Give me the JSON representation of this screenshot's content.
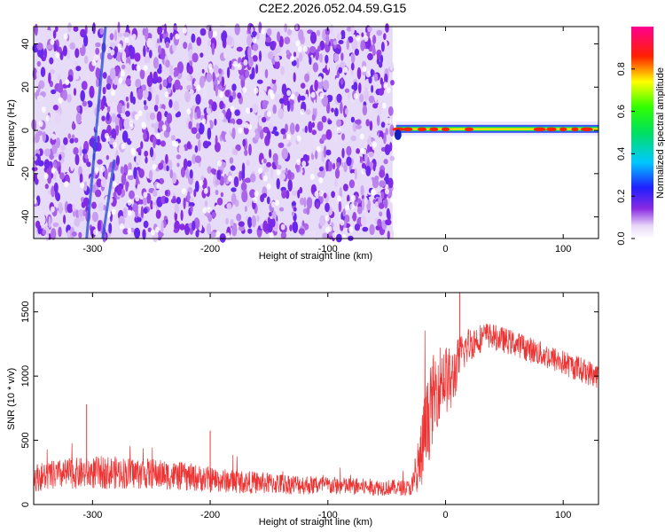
{
  "title": "C2E2.2026.052.04.59.G15",
  "chart_data": [
    {
      "type": "heatmap",
      "title": "C2E2.2026.052.04.59.G15",
      "xlabel": "Height of straight line (km)",
      "ylabel": "Frequency (Hz)",
      "xlim": [
        -350,
        130
      ],
      "ylim": [
        -50,
        48
      ],
      "xticks": [
        "-300",
        "-200",
        "-100",
        "0",
        "100"
      ],
      "xtick_values": [
        -300,
        -200,
        -100,
        0,
        100
      ],
      "yticks": [
        "40",
        "20",
        "0",
        "-20",
        "-40"
      ],
      "ytick_values": [
        40,
        20,
        0,
        -20,
        -40
      ],
      "colorbar": {
        "label": "Normalized spectral amplitude",
        "range": [
          0,
          1
        ],
        "ticks": [
          "0.0",
          "0.2",
          "0.4",
          "0.6",
          "0.8"
        ],
        "tick_values": [
          0.0,
          0.2,
          0.4,
          0.6,
          0.8
        ],
        "colormap": "rainbow (white-violet-blue-cyan-green-yellow-red-magenta)"
      },
      "features": [
        {
          "kind": "noise",
          "x_range": [
            -350,
            -45
          ],
          "freq_range": [
            -50,
            48
          ],
          "amplitude": 0.15
        },
        {
          "kind": "trace",
          "x_range": [
            -45,
            130
          ],
          "freq_hz": 0.5,
          "amplitude": 0.9
        },
        {
          "kind": "streak",
          "x_start": -305,
          "x_end": -298,
          "freq_range": [
            -50,
            48
          ],
          "amplitude": 0.3
        }
      ]
    },
    {
      "type": "line",
      "xlabel": "Height of straight line (km)",
      "ylabel": "SNR (10 * v/v)",
      "xlim": [
        -350,
        130
      ],
      "ylim": [
        0,
        1650
      ],
      "xticks": [
        "-300",
        "-200",
        "-100",
        "0",
        "100"
      ],
      "xtick_values": [
        -300,
        -200,
        -100,
        0,
        100
      ],
      "yticks": [
        "0",
        "500",
        "1000",
        "1500"
      ],
      "ytick_values": [
        0,
        500,
        1000,
        1500
      ],
      "color": "#ee3333",
      "envelope": {
        "x": [
          -350,
          -320,
          -290,
          -250,
          -220,
          -190,
          -150,
          -110,
          -60,
          -30,
          -25,
          -18,
          -10,
          -3,
          5,
          12,
          20,
          35,
          60,
          90,
          115,
          130
        ],
        "mean": [
          210,
          240,
          250,
          240,
          215,
          185,
          165,
          150,
          135,
          130,
          160,
          520,
          850,
          1000,
          950,
          1150,
          1250,
          1320,
          1250,
          1140,
          1050,
          1000
        ],
        "spread": [
          110,
          120,
          130,
          120,
          110,
          95,
          85,
          75,
          65,
          60,
          180,
          350,
          330,
          280,
          260,
          170,
          140,
          100,
          100,
          100,
          100,
          100
        ]
      },
      "peaks": [
        {
          "x": -305,
          "y": 780
        },
        {
          "x": -200,
          "y": 575
        },
        {
          "x": 12,
          "y": 1650
        }
      ]
    }
  ]
}
